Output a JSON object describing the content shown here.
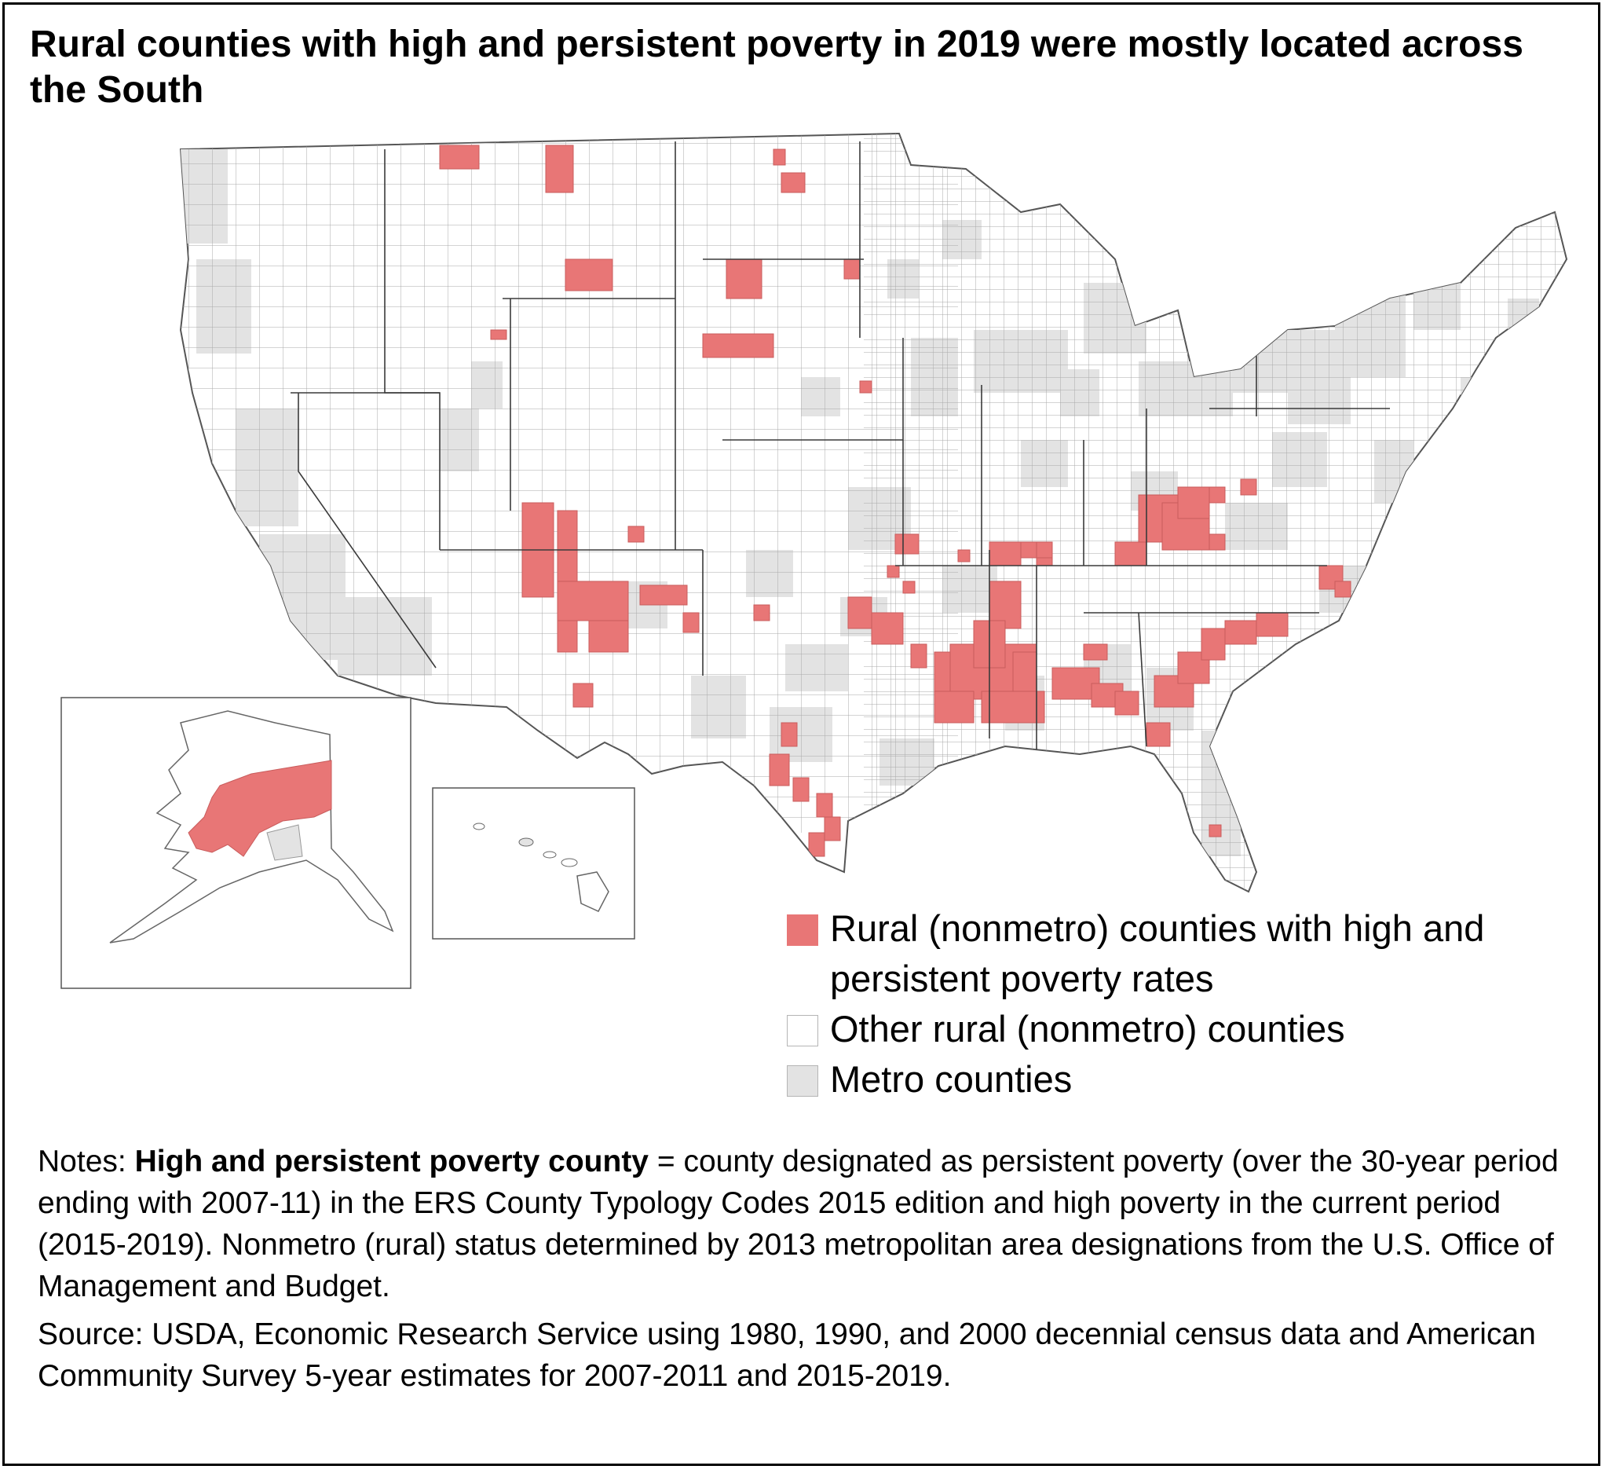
{
  "title": "Rural counties with high and persistent poverty in 2019 were mostly located across the South",
  "colors": {
    "high_poverty": "#e87676",
    "other_rural": "#ffffff",
    "metro": "#e3e3e3",
    "border": "#8a8a8a"
  },
  "legend": [
    {
      "label": "Rural (nonmetro) counties with high and persistent poverty rates",
      "color": "#e87676"
    },
    {
      "label": "Other rural (nonmetro) counties",
      "color": "#ffffff"
    },
    {
      "label": "Metro counties",
      "color": "#e3e3e3"
    }
  ],
  "notes": {
    "prefix": "Notes: ",
    "term": "High and persistent poverty county",
    "definition": " = county designated as persistent poverty (over the 30-year period ending with 2007-11) in the ERS County Typology Codes 2015 edition and high poverty in the current period (2015-2019). Nonmetro (rural) status determined by 2013 metropolitan area designations from the U.S. Office of Management and Budget."
  },
  "source": "Source: USDA, Economic Research Service using 1980, 1990, and 2000 decennial census data and American Community Survey 5-year estimates for 2007-2011 and 2015-2019."
}
